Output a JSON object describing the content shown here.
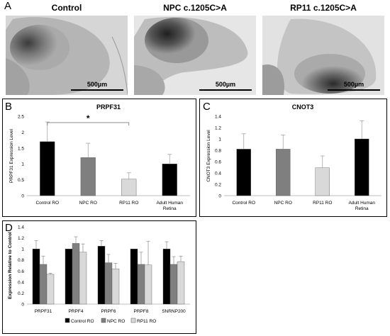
{
  "panel_a": {
    "letter": "A",
    "images": [
      {
        "title": "Control",
        "scale_label": "500µm"
      },
      {
        "title": "NPC c.1205C>A",
        "scale_label": "500µm"
      },
      {
        "title": "RP11 c.1205C>A",
        "scale_label": "500µm"
      }
    ]
  },
  "colors": {
    "black": "#000000",
    "grey": "#7f7f7f",
    "light": "#d9d9d9",
    "error": "#a6a6a6"
  },
  "chart_data": [
    {
      "id": "B",
      "type": "bar",
      "letter": "B",
      "title": "PRPF31",
      "ylabel": "PRPF31 Expression Level",
      "xlabel": "",
      "ylim": [
        0,
        2.5
      ],
      "yticks": [
        "0",
        "0.5",
        "1",
        "1.5",
        "2",
        "2.5"
      ],
      "ytick_values": [
        0,
        0.5,
        1,
        1.5,
        2,
        2.5
      ],
      "categories": [
        "Control RO",
        "NPC RO",
        "RP11 RO",
        "Adult Human Retina"
      ],
      "category_lines": [
        [
          "Control RO"
        ],
        [
          "NPC RO"
        ],
        [
          "RP11 RO"
        ],
        [
          "Adult Human",
          "Retina"
        ]
      ],
      "values": [
        1.7,
        1.2,
        0.52,
        1.0
      ],
      "errors": [
        0.62,
        0.45,
        0.2,
        0.3
      ],
      "bar_colors": [
        "#000000",
        "#7f7f7f",
        "#d9d9d9",
        "#000000"
      ],
      "significance": {
        "from": 0,
        "to": 2,
        "label": "*",
        "y": 2.3
      }
    },
    {
      "id": "C",
      "type": "bar",
      "letter": "C",
      "title": "CNOT3",
      "ylabel": "CNOT3 Expression Level",
      "xlabel": "",
      "ylim": [
        0,
        1.4
      ],
      "yticks": [
        "0",
        "0.2",
        "0.4",
        "0.6",
        "0.8",
        "1",
        "1.2",
        "1.4"
      ],
      "ytick_values": [
        0,
        0.2,
        0.4,
        0.6,
        0.8,
        1,
        1.2,
        1.4
      ],
      "categories": [
        "Control RO",
        "NPC RO",
        "RP11 RO",
        "Adult Human Retina"
      ],
      "category_lines": [
        [
          "Control RO"
        ],
        [
          "NPC RO"
        ],
        [
          "RP11 RO"
        ],
        [
          "Adult Human",
          "Retina"
        ]
      ],
      "values": [
        0.82,
        0.82,
        0.49,
        1.0
      ],
      "errors": [
        0.27,
        0.25,
        0.21,
        0.32
      ],
      "bar_colors": [
        "#000000",
        "#7f7f7f",
        "#d9d9d9",
        "#000000"
      ]
    },
    {
      "id": "D",
      "type": "bar",
      "letter": "D",
      "title": "",
      "ylabel": "Expression Relative to Control",
      "xlabel": "",
      "ylim": [
        0,
        1.4
      ],
      "yticks": [
        "0",
        "0.2",
        "0.4",
        "0.6",
        "0.8",
        "1",
        "1.2",
        "1.4"
      ],
      "ytick_values": [
        0,
        0.2,
        0.4,
        0.6,
        0.8,
        1,
        1.2,
        1.4
      ],
      "categories": [
        "PRPF31",
        "PRPF4",
        "PRPF6",
        "PRPF8",
        "SNRNP200"
      ],
      "series": [
        {
          "name": "Control RO",
          "color": "#000000",
          "values": [
            1.0,
            1.0,
            1.05,
            1.0,
            1.0
          ],
          "errors": [
            0.15,
            0.0,
            0.1,
            0.0,
            0.13
          ]
        },
        {
          "name": "NPC RO",
          "color": "#7f7f7f",
          "values": [
            0.72,
            1.1,
            0.75,
            0.72,
            0.72
          ],
          "errors": [
            0.15,
            0.12,
            0.15,
            0.22,
            0.14
          ]
        },
        {
          "name": "RP11 RO",
          "color": "#d9d9d9",
          "values": [
            0.54,
            0.94,
            0.64,
            0.71,
            0.77
          ],
          "errors": [
            0.02,
            0.15,
            0.1,
            0.43,
            0.1
          ]
        }
      ],
      "legend_position": "bottom"
    }
  ]
}
